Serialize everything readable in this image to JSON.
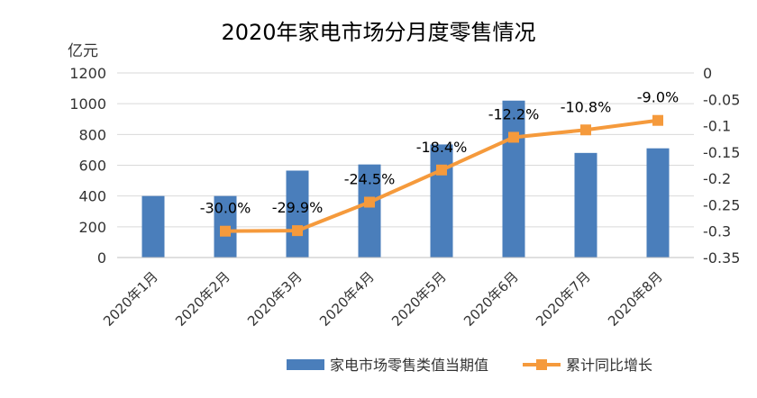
{
  "chart_data": {
    "type": "bar",
    "title": "2020年家电市场分月度零售情况",
    "ylabel": "亿元",
    "ylim": [
      0,
      1200
    ],
    "y_ticks": [
      0,
      200,
      400,
      600,
      800,
      1000,
      1200
    ],
    "y2lim": [
      -0.35,
      0
    ],
    "y2_ticks": [
      -0.35,
      -0.3,
      -0.25,
      -0.2,
      -0.15,
      -0.1,
      -0.05,
      0
    ],
    "y2_tick_labels": [
      "-0.35",
      "-0.3",
      "-0.25",
      "-0.2",
      "-0.15",
      "-0.1",
      "-0.05",
      "0"
    ],
    "categories": [
      "2020年1月",
      "2020年2月",
      "2020年3月",
      "2020年4月",
      "2020年5月",
      "2020年6月",
      "2020年7月",
      "2020年8月"
    ],
    "grid": true,
    "legend_position": "bottom",
    "series": [
      {
        "name": "家电市场零售类值当期值",
        "type": "bar",
        "axis": "left",
        "color": "#4a7ebb",
        "values": [
          400,
          400,
          565,
          605,
          735,
          1020,
          680,
          710
        ]
      },
      {
        "name": "累计同比增长",
        "type": "line",
        "axis": "right",
        "color": "#f59a3c",
        "values": [
          null,
          -0.3,
          -0.299,
          -0.245,
          -0.184,
          -0.122,
          -0.108,
          -0.09
        ],
        "labels": [
          null,
          "-30.0%",
          "-29.9%",
          "-24.5%",
          "-18.4%",
          "-12.2%",
          "-10.8%",
          "-9.0%"
        ]
      }
    ]
  }
}
